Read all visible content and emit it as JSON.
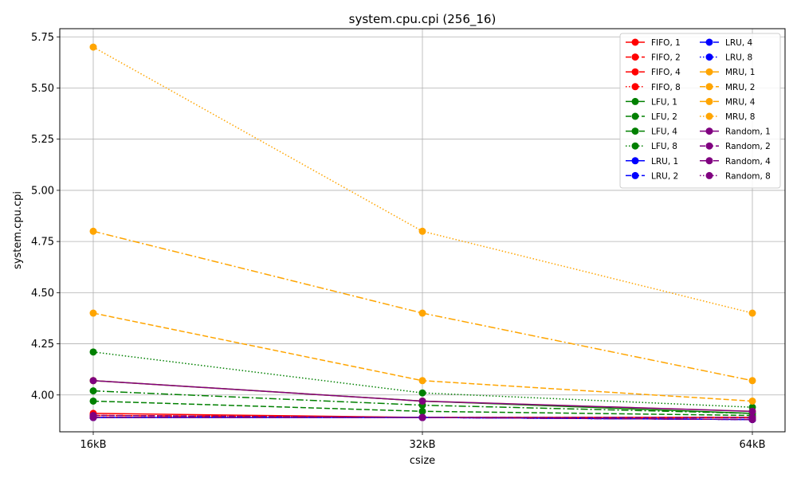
{
  "chart_data": {
    "type": "line",
    "title": "system.cpu.cpi (256_16)",
    "xlabel": "csize",
    "ylabel": "system.cpu.cpi",
    "categories": [
      "16kB",
      "32kB",
      "64kB"
    ],
    "ylim": [
      3.82,
      5.79
    ],
    "yticks": [
      4.0,
      4.25,
      4.5,
      4.75,
      5.0,
      5.25,
      5.5,
      5.75
    ],
    "ytick_labels": [
      "4.00",
      "4.25",
      "4.50",
      "4.75",
      "5.00",
      "5.25",
      "5.50",
      "5.75"
    ],
    "grid": true,
    "legend_position": "top-right",
    "legend_columns": 2,
    "series": [
      {
        "name": "FIFO, 1",
        "color": "#ff0000",
        "dash": "solid",
        "values": [
          3.91,
          3.89,
          3.89
        ]
      },
      {
        "name": "FIFO, 2",
        "color": "#ff0000",
        "dash": "dashed",
        "values": [
          3.9,
          3.89,
          3.89
        ]
      },
      {
        "name": "FIFO, 4",
        "color": "#ff0000",
        "dash": "dashdot",
        "values": [
          3.9,
          3.89,
          3.89
        ]
      },
      {
        "name": "FIFO, 8",
        "color": "#ff0000",
        "dash": "dotted",
        "values": [
          3.9,
          3.89,
          3.89
        ]
      },
      {
        "name": "LFU, 1",
        "color": "#008000",
        "dash": "solid",
        "values": [
          4.07,
          3.97,
          3.91
        ]
      },
      {
        "name": "LFU, 2",
        "color": "#008000",
        "dash": "dashed",
        "values": [
          3.97,
          3.92,
          3.9
        ]
      },
      {
        "name": "LFU, 4",
        "color": "#008000",
        "dash": "dashdot",
        "values": [
          4.02,
          3.95,
          3.91
        ]
      },
      {
        "name": "LFU, 8",
        "color": "#008000",
        "dash": "dotted",
        "values": [
          4.21,
          4.01,
          3.94
        ]
      },
      {
        "name": "LRU, 1",
        "color": "#0000ff",
        "dash": "solid",
        "values": [
          3.89,
          3.89,
          3.88
        ]
      },
      {
        "name": "LRU, 2",
        "color": "#0000ff",
        "dash": "dashed",
        "values": [
          3.89,
          3.89,
          3.88
        ]
      },
      {
        "name": "LRU, 4",
        "color": "#0000ff",
        "dash": "dashdot",
        "values": [
          3.89,
          3.89,
          3.88
        ]
      },
      {
        "name": "LRU, 8",
        "color": "#0000ff",
        "dash": "dotted",
        "values": [
          3.89,
          3.89,
          3.88
        ]
      },
      {
        "name": "MRU, 1",
        "color": "#ffa500",
        "dash": "solid",
        "values": [
          4.07,
          3.97,
          3.92
        ]
      },
      {
        "name": "MRU, 2",
        "color": "#ffa500",
        "dash": "dashed",
        "values": [
          4.4,
          4.07,
          3.97
        ]
      },
      {
        "name": "MRU, 4",
        "color": "#ffa500",
        "dash": "dashdot",
        "values": [
          4.8,
          4.4,
          4.07
        ]
      },
      {
        "name": "MRU, 8",
        "color": "#ffa500",
        "dash": "dotted",
        "values": [
          5.7,
          4.8,
          4.4
        ]
      },
      {
        "name": "Random, 1",
        "color": "#800080",
        "dash": "solid",
        "values": [
          4.07,
          3.97,
          3.92
        ]
      },
      {
        "name": "Random, 2",
        "color": "#800080",
        "dash": "dashed",
        "values": [
          3.9,
          3.89,
          3.89
        ]
      },
      {
        "name": "Random, 4",
        "color": "#800080",
        "dash": "dashdot",
        "values": [
          3.89,
          3.89,
          3.88
        ]
      },
      {
        "name": "Random, 8",
        "color": "#800080",
        "dash": "dotted",
        "values": [
          3.89,
          3.89,
          3.88
        ]
      }
    ]
  }
}
